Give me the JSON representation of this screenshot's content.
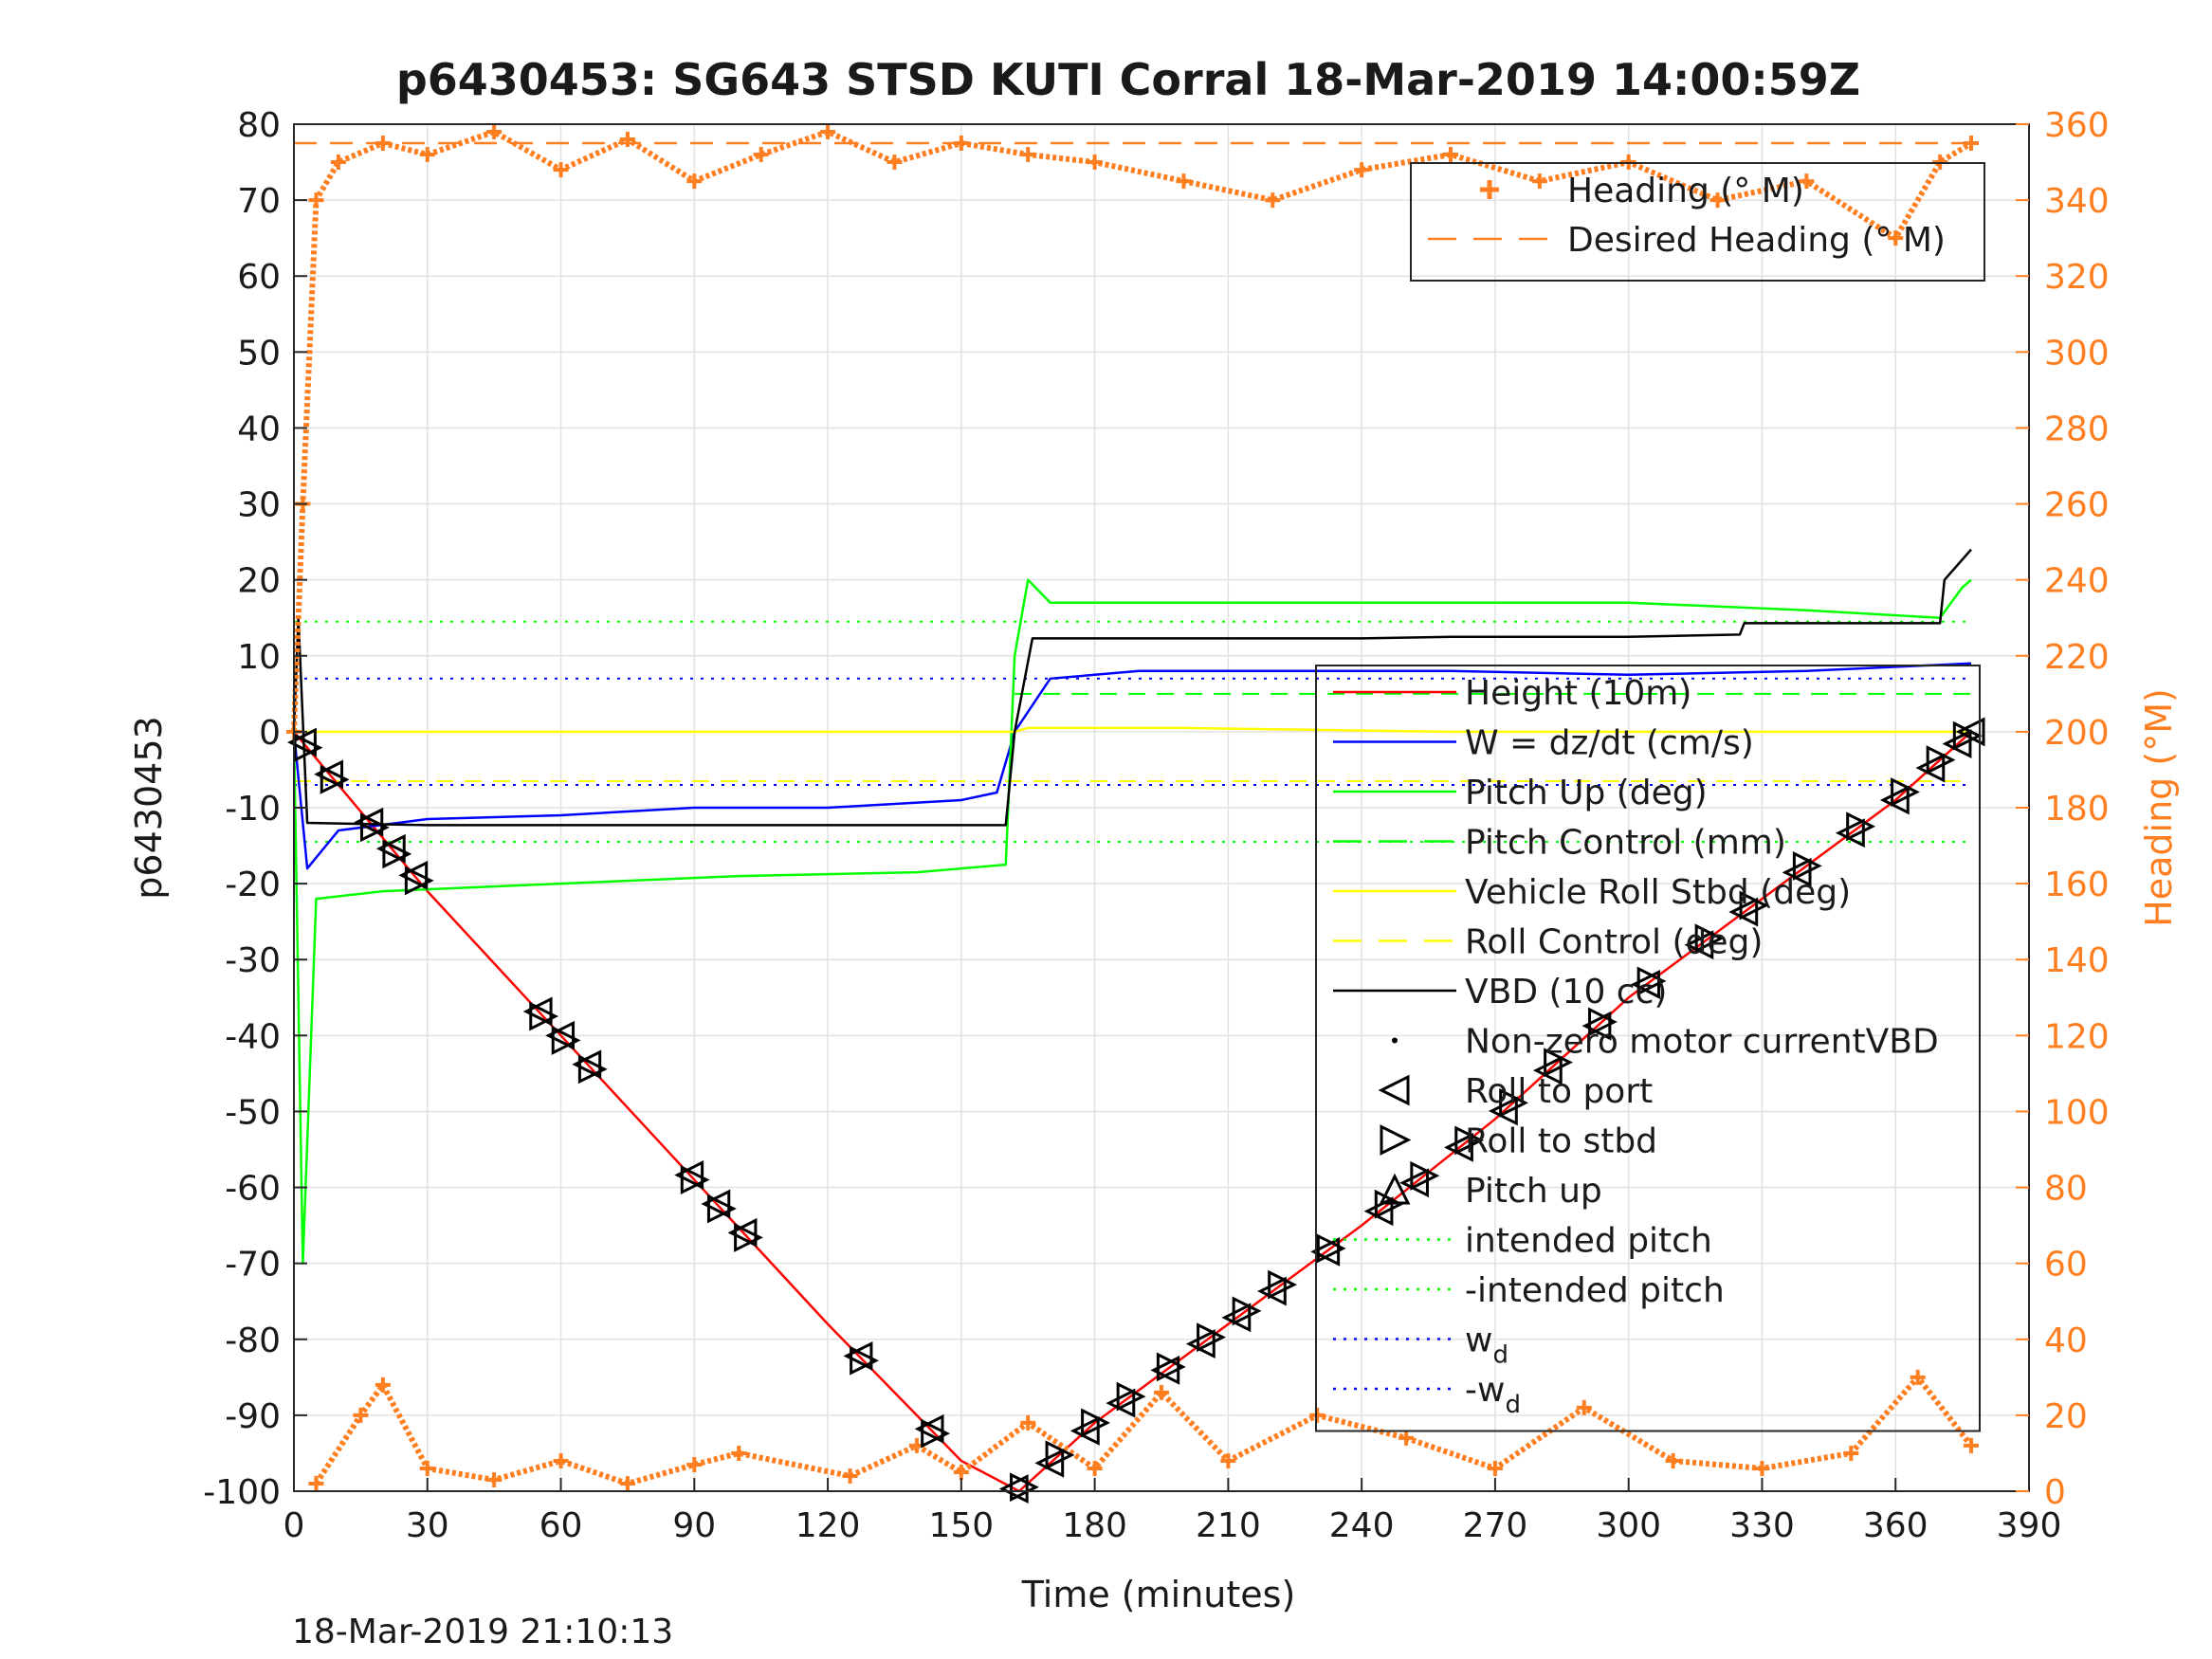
{
  "chart_data": {
    "type": "line",
    "title": "p6430453: SG643 STSD KUTI Corral 18-Mar-2019 14:00:59Z",
    "xlabel": "Time (minutes)",
    "ylabel": "p6430453",
    "ylabel_right": "Heading (°M)",
    "timestamp": "18-Mar-2019 21:10:13",
    "xlim": [
      0,
      390
    ],
    "ylim": [
      -100,
      80
    ],
    "ylim_right": [
      0,
      360
    ],
    "xticks": [
      "0",
      "30",
      "60",
      "90",
      "120",
      "150",
      "180",
      "210",
      "240",
      "270",
      "300",
      "330",
      "360",
      "390"
    ],
    "yticks": [
      "-100",
      "-90",
      "-80",
      "-70",
      "-60",
      "-50",
      "-40",
      "-30",
      "-20",
      "-10",
      "0",
      "10",
      "20",
      "30",
      "40",
      "50",
      "60",
      "70",
      "80"
    ],
    "yticks_right": [
      "0",
      "20",
      "40",
      "60",
      "80",
      "100",
      "120",
      "140",
      "160",
      "180",
      "200",
      "220",
      "240",
      "260",
      "280",
      "300",
      "320",
      "340",
      "360"
    ],
    "grid": true,
    "legend_top": [
      {
        "label": "Heading (° M)",
        "color": "#ff7f20",
        "style": "plus"
      },
      {
        "label": "Desired Heading (° M)",
        "color": "#ff7f20",
        "style": "dash"
      }
    ],
    "legend_main": [
      {
        "label": "Height (10m)",
        "color": "#ff0000",
        "style": "solid"
      },
      {
        "label": "W = dz/dt (cm/s)",
        "color": "#0000ff",
        "style": "solid"
      },
      {
        "label": "Pitch Up (deg)",
        "color": "#00ff00",
        "style": "solid"
      },
      {
        "label": "Pitch Control (mm)",
        "color": "#00ff00",
        "style": "dash"
      },
      {
        "label": "Vehicle Roll Stbd (deg)",
        "color": "#ffff00",
        "style": "solid"
      },
      {
        "label": "Roll Control (deg)",
        "color": "#ffff00",
        "style": "dash"
      },
      {
        "label": "VBD (10 cc)",
        "color": "#000000",
        "style": "solid"
      },
      {
        "label": "Non-zero motor currentVBD",
        "color": "#000000",
        "style": "dot"
      },
      {
        "label": "Roll to port",
        "color": "#000000",
        "style": "tri-left"
      },
      {
        "label": "Roll to stbd",
        "color": "#000000",
        "style": "tri-right"
      },
      {
        "label": "Pitch up",
        "color": "#000000",
        "style": "tri-up"
      },
      {
        "label": "intended pitch",
        "color": "#00ff00",
        "style": "dotted"
      },
      {
        "label": "-intended pitch",
        "color": "#00ff00",
        "style": "dotted"
      },
      {
        "label": "w",
        "sub": "d",
        "color": "#0000ff",
        "style": "dotted"
      },
      {
        "label": "-w",
        "sub": "d",
        "color": "#0000ff",
        "style": "dotted"
      }
    ],
    "series": [
      {
        "name": "Height (10m)",
        "color": "#ff0000",
        "x": [
          0,
          30,
          60,
          90,
          120,
          150,
          163,
          180,
          210,
          240,
          270,
          300,
          330,
          360,
          377
        ],
        "y": [
          0,
          -21,
          -40,
          -59,
          -78,
          -96,
          -100,
          -91,
          -78,
          -65,
          -51,
          -35,
          -22,
          -9,
          0
        ]
      },
      {
        "name": "W = dz/dt (cm/s)",
        "color": "#0000ff",
        "x": [
          0,
          3,
          10,
          30,
          60,
          90,
          120,
          150,
          158,
          162,
          170,
          190,
          220,
          260,
          300,
          340,
          377
        ],
        "y": [
          0,
          -18,
          -13,
          -11.5,
          -11,
          -10,
          -10,
          -9,
          -8,
          0,
          7,
          8,
          8,
          8,
          7.5,
          8,
          9
        ]
      },
      {
        "name": "Pitch Up (deg)",
        "color": "#00ff00",
        "x": [
          0,
          2,
          5,
          20,
          60,
          100,
          140,
          160,
          162,
          165,
          170,
          200,
          240,
          300,
          340,
          370,
          375,
          377
        ],
        "y": [
          0,
          -70,
          -22,
          -21,
          -20,
          -19,
          -18.5,
          -17.5,
          10,
          20,
          17,
          17,
          17,
          17,
          16,
          15,
          19,
          20
        ]
      },
      {
        "name": "Vehicle Roll Stbd (deg)",
        "color": "#ffff00",
        "x": [
          0,
          10,
          60,
          120,
          160,
          162,
          165,
          200,
          260,
          320,
          377
        ],
        "y": [
          0,
          0,
          0,
          0,
          0,
          0,
          0.5,
          0.5,
          0,
          0,
          0
        ]
      },
      {
        "name": "VBD (10 cc)",
        "color": "#000000",
        "x": [
          0,
          1,
          3,
          30,
          100,
          160,
          162,
          166,
          240,
          260,
          300,
          325,
          326,
          370,
          371,
          377
        ],
        "y": [
          0,
          15,
          -12,
          -12.3,
          -12.3,
          -12.3,
          0,
          12.3,
          12.3,
          12.5,
          12.5,
          12.8,
          14.3,
          14.3,
          20,
          24
        ]
      },
      {
        "name": "Heading (° M)",
        "color": "#ff7f20",
        "axis": "right",
        "x": [
          0,
          2,
          5,
          10,
          20,
          30,
          45,
          60,
          75,
          90,
          105,
          120,
          135,
          150,
          165,
          180,
          200,
          220,
          240,
          260,
          280,
          300,
          320,
          340,
          360,
          370,
          377
        ],
        "y": [
          200,
          260,
          340,
          350,
          355,
          352,
          358,
          348,
          356,
          345,
          352,
          358,
          350,
          355,
          352,
          350,
          345,
          340,
          348,
          352,
          345,
          350,
          340,
          345,
          330,
          350,
          355
        ]
      },
      {
        "name": "Heading low band (° M)",
        "color": "#ff7f20",
        "axis": "right",
        "x": [
          5,
          15,
          20,
          30,
          45,
          60,
          75,
          90,
          100,
          125,
          140,
          150,
          165,
          180,
          195,
          210,
          230,
          250,
          270,
          290,
          310,
          330,
          350,
          365,
          377
        ],
        "y": [
          2,
          20,
          28,
          6,
          3,
          8,
          2,
          7,
          10,
          4,
          12,
          5,
          18,
          6,
          26,
          8,
          20,
          14,
          6,
          22,
          8,
          6,
          10,
          30,
          12
        ]
      },
      {
        "name": "Desired Heading (° M)",
        "color": "#ff7f20",
        "axis": "right",
        "x": [
          0,
          377
        ],
        "y": [
          355,
          355
        ]
      }
    ],
    "reference_lines": [
      {
        "name": "intended pitch",
        "y": 14.5,
        "color": "#00ff00"
      },
      {
        "name": "-intended pitch",
        "y": -14.5,
        "color": "#00ff00"
      },
      {
        "name": "w_d",
        "y": 7,
        "color": "#0000ff"
      },
      {
        "name": "-w_d",
        "y": -7,
        "color": "#0000ff"
      },
      {
        "name": "Pitch Control (mm)",
        "y": 5,
        "color": "#00ff00",
        "from_x": 162
      },
      {
        "name": "Pitch Control (mm)",
        "y": -6.5,
        "color": "#00ff00",
        "to_x": 162
      },
      {
        "name": "Roll Control (deg)",
        "y": -6.5,
        "color": "#ffff00"
      }
    ],
    "markers": {
      "roll_to_port_x": [
        2,
        8,
        17,
        22,
        27,
        55,
        60,
        66,
        89,
        95,
        101,
        127,
        143,
        162,
        170,
        178,
        186,
        196,
        204,
        212,
        220,
        232,
        244,
        252,
        262,
        272,
        282,
        293,
        304,
        316,
        326,
        338,
        350,
        360,
        368,
        374,
        377
      ],
      "roll_to_stbd_x": [
        3,
        9,
        18,
        23,
        28,
        56,
        61,
        67,
        90,
        96,
        102,
        128,
        144,
        164,
        172,
        180,
        188,
        197,
        206,
        214,
        222,
        233,
        246,
        254,
        264,
        274,
        284,
        294,
        305,
        318,
        328,
        340,
        352,
        362,
        370,
        376
      ]
    }
  }
}
